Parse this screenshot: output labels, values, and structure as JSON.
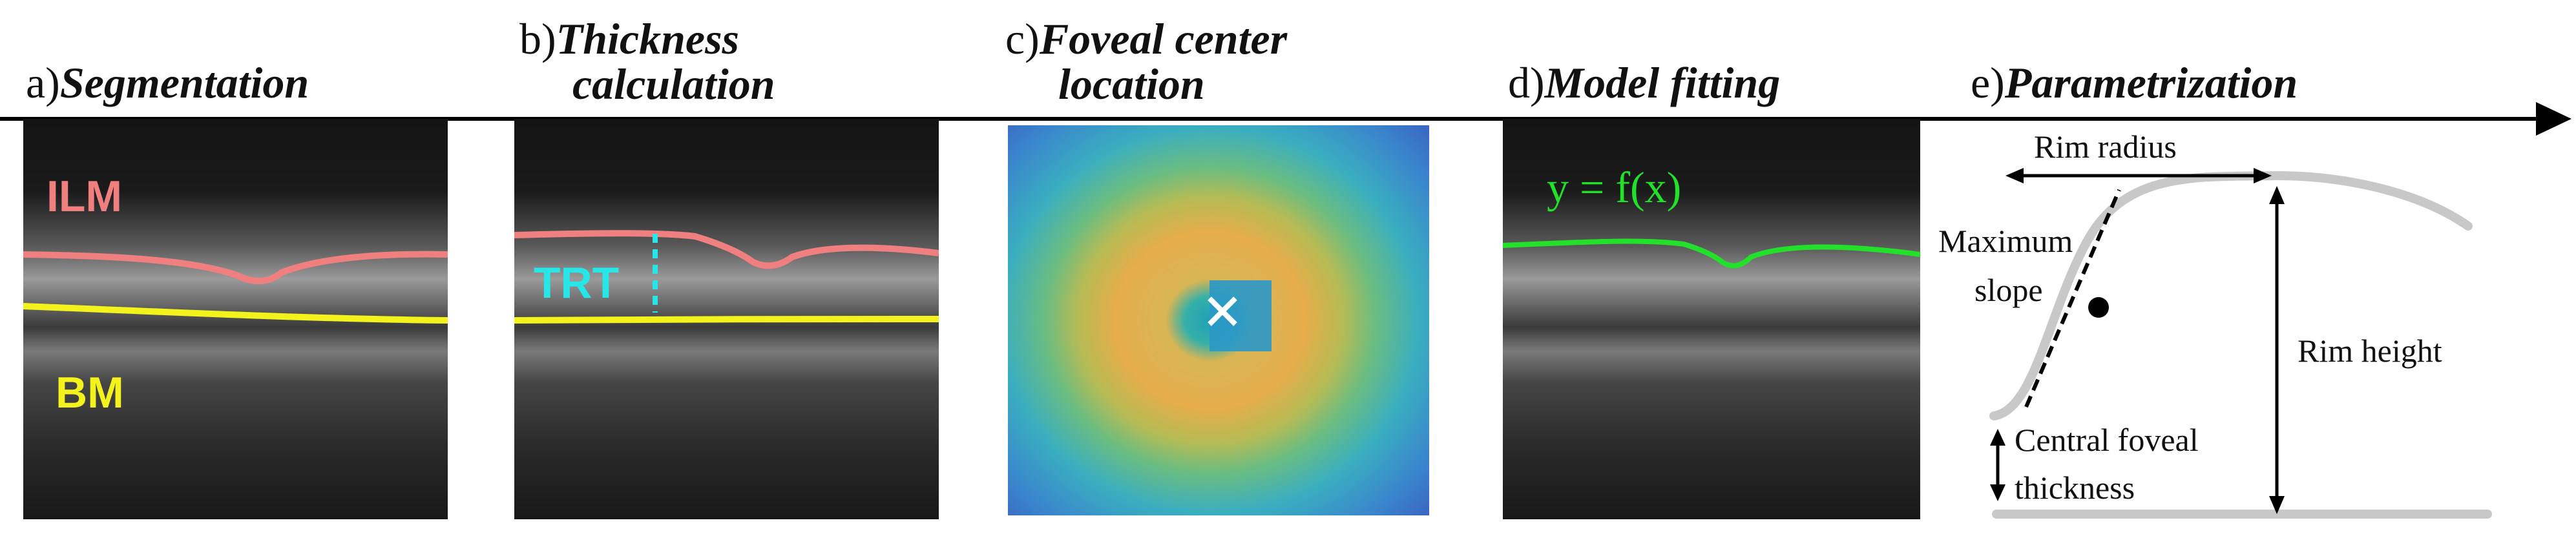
{
  "panels": [
    {
      "letter": "a)",
      "title": "Segmentation"
    },
    {
      "letter": "b)",
      "title_line1": "Thickness",
      "title_line2": "calculation"
    },
    {
      "letter": "c)",
      "title_line1": "Foveal center",
      "title_line2": "location"
    },
    {
      "letter": "d)",
      "title": "Model fitting"
    },
    {
      "letter": "e)",
      "title": "Parametrization"
    }
  ],
  "overlays": {
    "ilm": "ILM",
    "bm": "BM",
    "trt": "TRT",
    "center_mark": "X",
    "model_equation": "y = f(x)"
  },
  "parametrization": {
    "rim_radius": "Rim radius",
    "maximum_slope_line1": "Maximum",
    "maximum_slope_line2": "slope",
    "rim_height": "Rim height",
    "central_line1": "Central foveal",
    "central_line2": "thickness"
  },
  "colors": {
    "ilm": "#f07f80",
    "bm": "#f4f21c",
    "trt": "#27e6e8",
    "model": "#23e02a",
    "center_mark": "#ffffff",
    "axis": "#000000",
    "param_curve": "#c8c8c8"
  }
}
